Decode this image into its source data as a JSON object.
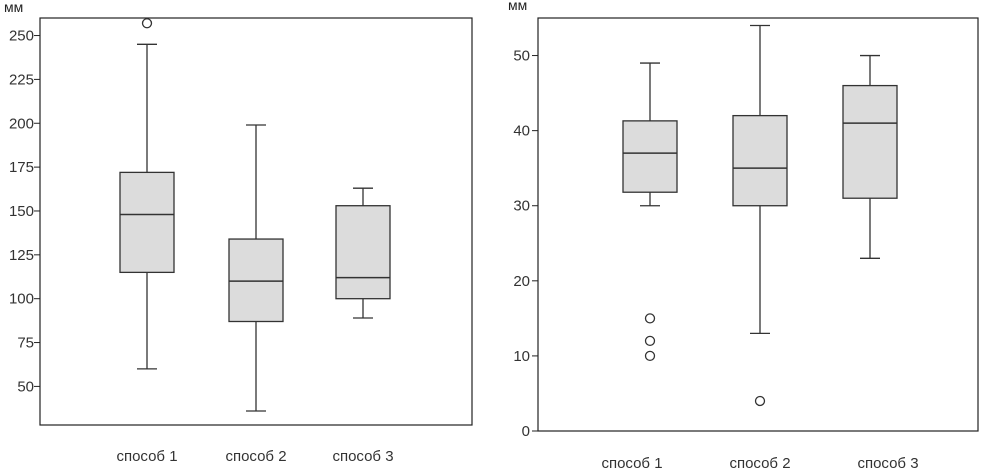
{
  "chart_data": [
    {
      "type": "box",
      "unit_label": "мм",
      "ylim": [
        28,
        260
      ],
      "yticks": [
        50,
        75,
        100,
        125,
        150,
        175,
        200,
        225,
        250
      ],
      "categories": [
        "способ 1",
        "способ 2",
        "способ 3"
      ],
      "boxes": [
        {
          "min": 60,
          "q1": 115,
          "median": 148,
          "q3": 172,
          "max": 245,
          "outliers": [
            257
          ]
        },
        {
          "min": 36,
          "q1": 87,
          "median": 110,
          "q3": 134,
          "max": 199,
          "outliers": []
        },
        {
          "min": 89,
          "q1": 100,
          "median": 112,
          "q3": 153,
          "max": 163,
          "outliers": []
        }
      ]
    },
    {
      "type": "box",
      "unit_label": "мм",
      "ylim": [
        0,
        55
      ],
      "yticks": [
        0,
        10,
        20,
        30,
        40,
        50
      ],
      "categories": [
        "способ 1",
        "способ 2",
        "способ 3"
      ],
      "boxes": [
        {
          "min": 30,
          "q1": 31.8,
          "median": 37,
          "q3": 41.3,
          "max": 49,
          "outliers": [
            15,
            12,
            10
          ]
        },
        {
          "min": 13,
          "q1": 30,
          "median": 35,
          "q3": 42,
          "max": 54,
          "outliers": [
            4
          ]
        },
        {
          "min": 23,
          "q1": 31,
          "median": 41,
          "q3": 46,
          "max": 50,
          "outliers": []
        }
      ]
    }
  ]
}
